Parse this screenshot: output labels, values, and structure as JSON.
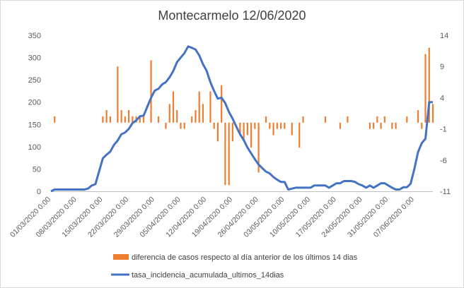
{
  "chart_data": {
    "type": "bar+line",
    "title": "Montecarmelo 12/06/2020",
    "y_left": {
      "ylim": [
        0,
        350
      ],
      "ticks": [
        "0",
        "50",
        "100",
        "150",
        "200",
        "250",
        "300",
        "350"
      ]
    },
    "y_right": {
      "ylim": [
        -11,
        14
      ],
      "ticks": [
        "-11",
        "-6",
        "-1",
        "4",
        "9",
        "14"
      ]
    },
    "x_tick_labels": [
      "01/03/2020 0:00",
      "08/03/2020 0:00",
      "15/03/2020 0:00",
      "22/03/2020 0:00",
      "29/03/2020 0:00",
      "05/04/2020 0:00",
      "12/04/2020 0:00",
      "19/04/2020 0:00",
      "26/04/2020 0:00",
      "03/05/2020 0:00",
      "10/05/2020 0:00",
      "17/05/2020 0:00",
      "24/05/2020 0:00",
      "31/05/2020 0:00",
      "07/06/2020 0:00"
    ],
    "x_start": "2020-03-01",
    "x_end": "2020-06-12",
    "bar_color": "#ED7D31",
    "line_color": "#4472C4",
    "series": [
      {
        "name": "diferencia de casos respecto al día anterior de los últimos 14 dias",
        "axis": "right",
        "type": "bar",
        "points": [
          [
            "2020-03-02",
            1
          ],
          [
            "2020-03-15",
            1
          ],
          [
            "2020-03-16",
            2
          ],
          [
            "2020-03-17",
            1
          ],
          [
            "2020-03-19",
            9
          ],
          [
            "2020-03-20",
            2
          ],
          [
            "2020-03-21",
            1
          ],
          [
            "2020-03-22",
            2
          ],
          [
            "2020-03-23",
            1
          ],
          [
            "2020-03-24",
            1
          ],
          [
            "2020-03-25",
            1
          ],
          [
            "2020-03-26",
            1
          ],
          [
            "2020-03-28",
            10
          ],
          [
            "2020-03-30",
            1
          ],
          [
            "2020-04-01",
            -1
          ],
          [
            "2020-04-02",
            3
          ],
          [
            "2020-04-03",
            5
          ],
          [
            "2020-04-04",
            2
          ],
          [
            "2020-04-05",
            -1
          ],
          [
            "2020-04-06",
            -1
          ],
          [
            "2020-04-08",
            1
          ],
          [
            "2020-04-09",
            2
          ],
          [
            "2020-04-10",
            5
          ],
          [
            "2020-04-11",
            3
          ],
          [
            "2020-04-13",
            5
          ],
          [
            "2020-04-14",
            -1
          ],
          [
            "2020-04-15",
            -3
          ],
          [
            "2020-04-16",
            6
          ],
          [
            "2020-04-17",
            -10
          ],
          [
            "2020-04-18",
            -10
          ],
          [
            "2020-04-19",
            -3
          ],
          [
            "2020-04-21",
            -2
          ],
          [
            "2020-04-22",
            -3
          ],
          [
            "2020-04-23",
            -2
          ],
          [
            "2020-04-24",
            -4
          ],
          [
            "2020-04-25",
            -1
          ],
          [
            "2020-04-26",
            -8
          ],
          [
            "2020-04-28",
            1
          ],
          [
            "2020-04-29",
            -1
          ],
          [
            "2020-04-30",
            -2
          ],
          [
            "2020-05-01",
            -1
          ],
          [
            "2020-05-02",
            -1
          ],
          [
            "2020-05-03",
            -1
          ],
          [
            "2020-05-05",
            -2
          ],
          [
            "2020-05-07",
            -4
          ],
          [
            "2020-05-08",
            1
          ],
          [
            "2020-05-14",
            1
          ],
          [
            "2020-05-18",
            -1
          ],
          [
            "2020-05-20",
            1
          ],
          [
            "2020-05-26",
            -1
          ],
          [
            "2020-05-27",
            -1
          ],
          [
            "2020-05-28",
            1
          ],
          [
            "2020-05-29",
            -1
          ],
          [
            "2020-05-30",
            1
          ],
          [
            "2020-06-01",
            -1
          ],
          [
            "2020-06-02",
            -1
          ],
          [
            "2020-06-05",
            1
          ],
          [
            "2020-06-08",
            2
          ],
          [
            "2020-06-09",
            -1
          ],
          [
            "2020-06-10",
            11
          ],
          [
            "2020-06-11",
            12
          ],
          [
            "2020-06-12",
            3
          ]
        ]
      },
      {
        "name": "tasa_incidencia_acumulada_ultimos_14dias",
        "axis": "left",
        "type": "line",
        "points": [
          [
            "2020-03-01",
            0
          ],
          [
            "2020-03-02",
            4
          ],
          [
            "2020-03-10",
            4
          ],
          [
            "2020-03-11",
            6
          ],
          [
            "2020-03-12",
            13
          ],
          [
            "2020-03-13",
            16
          ],
          [
            "2020-03-15",
            74
          ],
          [
            "2020-03-16",
            82
          ],
          [
            "2020-03-17",
            89
          ],
          [
            "2020-03-18",
            104
          ],
          [
            "2020-03-19",
            114
          ],
          [
            "2020-03-20",
            128
          ],
          [
            "2020-03-21",
            132
          ],
          [
            "2020-03-22",
            140
          ],
          [
            "2020-03-23",
            153
          ],
          [
            "2020-03-24",
            159
          ],
          [
            "2020-03-25",
            168
          ],
          [
            "2020-03-26",
            170
          ],
          [
            "2020-03-27",
            190
          ],
          [
            "2020-03-28",
            210
          ],
          [
            "2020-03-29",
            226
          ],
          [
            "2020-03-30",
            230
          ],
          [
            "2020-03-31",
            240
          ],
          [
            "2020-04-01",
            245
          ],
          [
            "2020-04-02",
            256
          ],
          [
            "2020-04-03",
            270
          ],
          [
            "2020-04-04",
            290
          ],
          [
            "2020-04-05",
            300
          ],
          [
            "2020-04-06",
            310
          ],
          [
            "2020-04-07",
            325
          ],
          [
            "2020-04-08",
            322
          ],
          [
            "2020-04-09",
            318
          ],
          [
            "2020-04-10",
            305
          ],
          [
            "2020-04-11",
            285
          ],
          [
            "2020-04-12",
            270
          ],
          [
            "2020-04-13",
            245
          ],
          [
            "2020-04-14",
            225
          ],
          [
            "2020-04-15",
            208
          ],
          [
            "2020-04-16",
            210
          ],
          [
            "2020-04-17",
            198
          ],
          [
            "2020-04-18",
            178
          ],
          [
            "2020-04-19",
            163
          ],
          [
            "2020-04-20",
            145
          ],
          [
            "2020-04-21",
            128
          ],
          [
            "2020-04-22",
            115
          ],
          [
            "2020-04-23",
            98
          ],
          [
            "2020-04-24",
            85
          ],
          [
            "2020-04-25",
            72
          ],
          [
            "2020-04-26",
            60
          ],
          [
            "2020-04-27",
            52
          ],
          [
            "2020-04-28",
            44
          ],
          [
            "2020-04-29",
            40
          ],
          [
            "2020-04-30",
            32
          ],
          [
            "2020-05-01",
            26
          ],
          [
            "2020-05-02",
            21
          ],
          [
            "2020-05-03",
            21
          ],
          [
            "2020-05-04",
            4
          ],
          [
            "2020-05-05",
            6
          ],
          [
            "2020-05-06",
            8
          ],
          [
            "2020-05-10",
            8
          ],
          [
            "2020-05-11",
            13
          ],
          [
            "2020-05-14",
            13
          ],
          [
            "2020-05-15",
            8
          ],
          [
            "2020-05-16",
            13
          ],
          [
            "2020-05-17",
            18
          ],
          [
            "2020-05-18",
            18
          ],
          [
            "2020-05-19",
            23
          ],
          [
            "2020-05-20",
            23
          ],
          [
            "2020-05-21",
            23
          ],
          [
            "2020-05-22",
            21
          ],
          [
            "2020-05-23",
            16
          ],
          [
            "2020-05-24",
            13
          ],
          [
            "2020-05-25",
            8
          ],
          [
            "2020-05-26",
            13
          ],
          [
            "2020-05-27",
            8
          ],
          [
            "2020-05-28",
            13
          ],
          [
            "2020-05-29",
            18
          ],
          [
            "2020-05-30",
            18
          ],
          [
            "2020-05-31",
            13
          ],
          [
            "2020-06-01",
            8
          ],
          [
            "2020-06-02",
            4
          ],
          [
            "2020-06-03",
            4
          ],
          [
            "2020-06-04",
            9
          ],
          [
            "2020-06-05",
            9
          ],
          [
            "2020-06-06",
            17
          ],
          [
            "2020-06-07",
            50
          ],
          [
            "2020-06-08",
            88
          ],
          [
            "2020-06-09",
            108
          ],
          [
            "2020-06-10",
            118
          ],
          [
            "2020-06-11",
            200
          ],
          [
            "2020-06-12",
            200
          ]
        ]
      }
    ],
    "legend_position": "bottom",
    "grid": false
  }
}
